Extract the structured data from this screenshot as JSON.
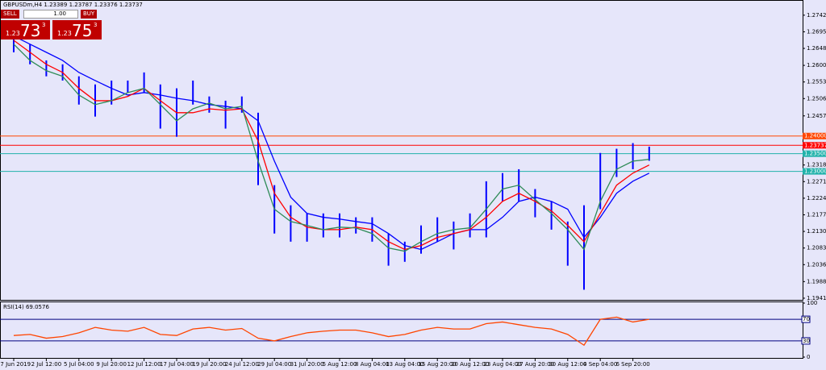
{
  "trade_panel": {
    "sell": "SELL",
    "buy": "BUY",
    "lot": "1.00",
    "sell_price": [
      "1.23",
      "73",
      "3"
    ],
    "buy_price": [
      "1.23",
      "75",
      "3"
    ]
  },
  "chart_data": [
    {
      "type": "hilo",
      "title": "GBPUSDm,H4 1.23389 1.23787 1.23376 1.23737",
      "categories": [
        "27 Jun 2019",
        null,
        "2 Jul 12:00",
        null,
        "5 Jul 04:00",
        null,
        "9 Jul 20:00",
        null,
        "12 Jul 12:00",
        null,
        "17 Jul 04:00",
        null,
        "19 Jul 20:00",
        null,
        "24 Jul 12:00",
        null,
        "29 Jul 04:00",
        null,
        "31 Jul 20:00",
        null,
        "5 Aug 12:00",
        null,
        "8 Aug 04:00",
        null,
        "13 Aug 04:00",
        null,
        "15 Aug 20:00",
        null,
        "20 Aug 12:00",
        null,
        "23 Aug 04:00",
        null,
        "27 Aug 20:00",
        null,
        "30 Aug 12:00",
        null,
        "4 Sep 04:00",
        null,
        "6 Sep 20:00",
        null
      ],
      "high": [
        1.2694,
        1.266,
        1.2614,
        1.2603,
        1.2569,
        1.2546,
        1.2557,
        1.2557,
        1.258,
        1.2546,
        1.2535,
        1.2557,
        1.2512,
        1.25,
        1.2512,
        1.2466,
        1.2261,
        1.2204,
        1.2181,
        1.2181,
        1.2181,
        1.217,
        1.217,
        1.2124,
        1.2101,
        1.2147,
        1.217,
        1.2158,
        1.2181,
        1.2272,
        1.2295,
        1.2306,
        1.225,
        1.2215,
        1.2158,
        1.2204,
        1.2352,
        1.2364,
        1.238,
        1.237
      ],
      "low": [
        1.2637,
        1.2603,
        1.2569,
        1.2557,
        1.2489,
        1.2455,
        1.2489,
        1.2523,
        1.2523,
        1.2421,
        1.2398,
        1.2489,
        1.2466,
        1.2421,
        1.2466,
        1.2261,
        1.2124,
        1.2101,
        1.2101,
        1.2113,
        1.2113,
        1.2124,
        1.2101,
        1.2033,
        1.2044,
        1.2067,
        1.2101,
        1.2079,
        1.2113,
        1.2113,
        1.2215,
        1.2215,
        1.217,
        1.2135,
        1.2033,
        1.1965,
        1.2193,
        1.2284,
        1.2306,
        1.233
      ],
      "bar_color": "#0000ff",
      "series": [
        {
          "color": "#0000ff",
          "values": [
            1.2683,
            1.266,
            1.2637,
            1.2614,
            1.258,
            1.2557,
            1.2535,
            1.2516,
            1.2523,
            1.2516,
            1.2507,
            1.25,
            1.2489,
            1.2484,
            1.2477,
            1.2443,
            1.2329,
            1.2227,
            1.2181,
            1.217,
            1.2165,
            1.2158,
            1.2152,
            1.2124,
            1.209,
            1.2079,
            1.2101,
            1.2124,
            1.2135,
            1.2135,
            1.217,
            1.2215,
            1.2227,
            1.2215,
            1.2193,
            1.2113,
            1.217,
            1.2238,
            1.2272,
            1.2295
          ]
        },
        {
          "color": "#ff0000",
          "values": [
            1.2671,
            1.2637,
            1.2603,
            1.258,
            1.2535,
            1.25,
            1.25,
            1.2512,
            1.2535,
            1.25,
            1.2466,
            1.2466,
            1.2477,
            1.2473,
            1.2477,
            1.2386,
            1.2238,
            1.217,
            1.2142,
            1.2135,
            1.2135,
            1.2142,
            1.2135,
            1.2101,
            1.2079,
            1.209,
            1.2113,
            1.2124,
            1.2135,
            1.217,
            1.2215,
            1.2238,
            1.2215,
            1.2188,
            1.2147,
            1.2101,
            1.2181,
            1.2261,
            1.2295,
            1.2318
          ]
        },
        {
          "color": "#2e8b57",
          "values": [
            1.266,
            1.2614,
            1.2585,
            1.2569,
            1.2516,
            1.2489,
            1.25,
            1.2523,
            1.2535,
            1.2489,
            1.2443,
            1.2477,
            1.2493,
            1.2477,
            1.2484,
            1.2329,
            1.2193,
            1.2158,
            1.2147,
            1.2135,
            1.2142,
            1.214,
            1.2124,
            1.2083,
            1.2074,
            1.2101,
            1.2124,
            1.2135,
            1.214,
            1.2193,
            1.225,
            1.2261,
            1.222,
            1.2181,
            1.2135,
            1.2079,
            1.2215,
            1.2306,
            1.2329,
            1.2334
          ]
        }
      ],
      "ylim": [
        1.1934,
        1.2785
      ],
      "yticks": [
        {
          "value": 1.2742,
          "label": "1.27420"
        },
        {
          "value": 1.2695,
          "label": "1.26950"
        },
        {
          "value": 1.2648,
          "label": "1.26480"
        },
        {
          "value": 1.26,
          "label": "1.26000"
        },
        {
          "value": 1.2553,
          "label": "1.25530"
        },
        {
          "value": 1.2506,
          "label": "1.25060"
        },
        {
          "value": 1.2457,
          "label": "1.24570"
        },
        {
          "value": 1.2318,
          "label": "1.23180"
        },
        {
          "value": 1.2271,
          "label": "1.22710"
        },
        {
          "value": 1.2224,
          "label": "1.22240"
        },
        {
          "value": 1.2177,
          "label": "1.21770"
        },
        {
          "value": 1.213,
          "label": "1.21300"
        },
        {
          "value": 1.2083,
          "label": "1.20830"
        },
        {
          "value": 1.2036,
          "label": "1.20360"
        },
        {
          "value": 1.1988,
          "label": "1.19880"
        },
        {
          "value": 1.1941,
          "label": "1.19410"
        }
      ],
      "levels": [
        {
          "value": 1.24,
          "label": "1.24000",
          "color": "#ff4500"
        },
        {
          "value": 1.23737,
          "label": "1.23737",
          "color": "#ff0000"
        },
        {
          "value": 1.235,
          "label": "1.23500",
          "color": "#20b2aa"
        },
        {
          "value": 1.23,
          "label": "1.23000",
          "color": "#20b2aa"
        }
      ]
    },
    {
      "type": "line",
      "title": "RSI(14) 69.0576",
      "color": "#ff4500",
      "values": [
        40,
        42,
        35,
        38,
        45,
        55,
        50,
        48,
        55,
        42,
        40,
        52,
        55,
        50,
        53,
        35,
        30,
        38,
        45,
        48,
        50,
        50,
        45,
        38,
        42,
        50,
        55,
        52,
        52,
        62,
        65,
        60,
        55,
        52,
        42,
        22,
        70,
        74,
        65,
        70
      ],
      "ylim": [
        0,
        100
      ],
      "yticks": [
        0,
        100
      ],
      "levels": [
        {
          "value": 70,
          "label": "70"
        },
        {
          "value": 30,
          "label": "30"
        }
      ],
      "level_color": "#000080"
    }
  ]
}
